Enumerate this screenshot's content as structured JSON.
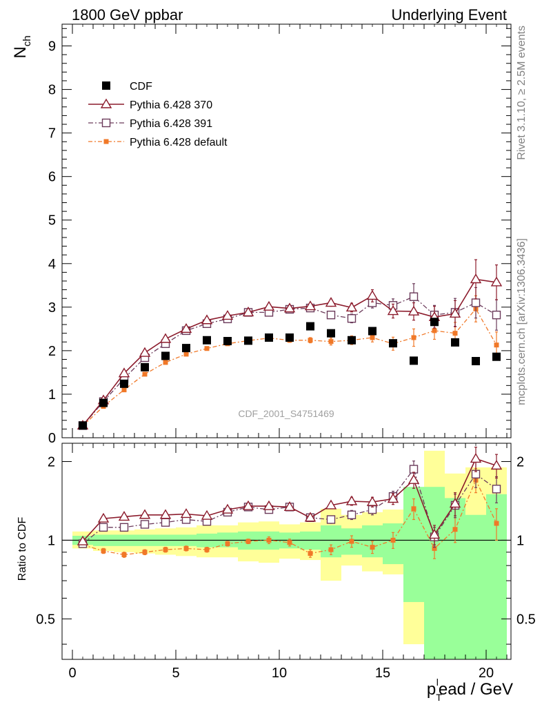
{
  "header": {
    "left": "1800 GeV ppbar",
    "right": "Underlying Event"
  },
  "side_labels": {
    "rivet": "Rivet 3.1.10, ≥ 2.5M events",
    "mcplots": "mcplots.cern.ch [arXiv:1306.3436]"
  },
  "watermark": "CDF_2001_S4751469",
  "colors": {
    "data": "#000000",
    "p370": "#8b1a2b",
    "p391": "#6b3a5a",
    "pdef": "#f07828",
    "band_inner": "#99ff99",
    "band_outer": "#ffff99"
  },
  "chart_data": [
    {
      "type": "scatter",
      "ylabel": "N",
      "ylabel_sub": "ch",
      "ylim": [
        0,
        9.5
      ],
      "xlim": [
        -0.5,
        21.2
      ],
      "yticks": [
        "0",
        "1",
        "2",
        "3",
        "4",
        "5",
        "6",
        "7",
        "8",
        "9"
      ],
      "legend_position": "top-left",
      "x": [
        0.5,
        1.5,
        2.5,
        3.5,
        4.5,
        5.5,
        6.5,
        7.5,
        8.5,
        9.5,
        10.5,
        11.5,
        12.5,
        13.5,
        14.5,
        15.5,
        16.5,
        17.5,
        18.5,
        19.5,
        20.5
      ],
      "series": [
        {
          "name": "CDF",
          "key": "data",
          "values": [
            0.28,
            0.8,
            1.24,
            1.62,
            1.88,
            2.06,
            2.24,
            2.22,
            2.23,
            2.3,
            2.3,
            2.56,
            2.4,
            2.24,
            2.45,
            2.17,
            1.77,
            2.66,
            2.19,
            1.76,
            1.86
          ]
        },
        {
          "name": "Pythia 6.428 370",
          "key": "p370",
          "values": [
            0.28,
            0.86,
            1.48,
            1.95,
            2.27,
            2.5,
            2.7,
            2.8,
            2.88,
            3.01,
            2.97,
            3.02,
            3.1,
            2.99,
            3.26,
            2.91,
            2.9,
            2.77,
            2.85,
            3.64,
            3.57
          ],
          "errors": [
            0.02,
            0.03,
            0.03,
            0.03,
            0.03,
            0.03,
            0.03,
            0.04,
            0.04,
            0.05,
            0.05,
            0.06,
            0.08,
            0.1,
            0.14,
            0.16,
            0.2,
            0.25,
            0.3,
            0.45,
            0.4
          ]
        },
        {
          "name": "Pythia 6.428 391",
          "key": "p391",
          "values": [
            0.28,
            0.83,
            1.36,
            1.84,
            2.16,
            2.46,
            2.62,
            2.73,
            2.88,
            2.88,
            2.95,
            2.98,
            2.82,
            2.74,
            3.1,
            3.04,
            3.24,
            2.82,
            2.88,
            3.1,
            2.82
          ],
          "errors": [
            0.02,
            0.03,
            0.03,
            0.03,
            0.03,
            0.03,
            0.03,
            0.04,
            0.04,
            0.05,
            0.05,
            0.06,
            0.08,
            0.1,
            0.12,
            0.15,
            0.3,
            0.22,
            0.32,
            0.35,
            0.35
          ]
        },
        {
          "name": "Pythia 6.428 default",
          "key": "pdef",
          "values": [
            0.27,
            0.72,
            1.1,
            1.46,
            1.73,
            1.92,
            2.05,
            2.16,
            2.23,
            2.29,
            2.24,
            2.24,
            2.21,
            2.24,
            2.3,
            2.16,
            2.3,
            2.46,
            2.4,
            2.96,
            2.13
          ],
          "errors": [
            0.02,
            0.03,
            0.03,
            0.03,
            0.03,
            0.03,
            0.03,
            0.04,
            0.04,
            0.05,
            0.05,
            0.06,
            0.08,
            0.1,
            0.1,
            0.15,
            0.2,
            0.2,
            0.25,
            0.3,
            0.3
          ]
        }
      ]
    },
    {
      "type": "scatter",
      "ylabel": "Ratio to CDF",
      "ylim": [
        0.35,
        2.35
      ],
      "log_y": true,
      "xlim": [
        -0.5,
        21.2
      ],
      "xlabel": "p",
      "xlabel_sub": "T",
      "xlabel_sup": "l",
      "xlabel_rest": "ead / GeV",
      "xticks": [
        "0",
        "5",
        "10",
        "15",
        "20"
      ],
      "yticks": [
        "0.5",
        "1",
        "2"
      ],
      "reference_line": 1,
      "bands": {
        "x": [
          0.5,
          1.5,
          2.5,
          3.5,
          4.5,
          5.5,
          6.5,
          7.5,
          8.5,
          9.5,
          10.5,
          11.5,
          12.5,
          13.5,
          14.5,
          15.5,
          16.5,
          17.5,
          18.5,
          19.5,
          20.5
        ],
        "inner": [
          [
            0.96,
            1.04
          ],
          [
            0.95,
            1.05
          ],
          [
            0.95,
            1.05
          ],
          [
            0.95,
            1.05
          ],
          [
            0.95,
            1.05
          ],
          [
            0.95,
            1.05
          ],
          [
            0.94,
            1.06
          ],
          [
            0.94,
            1.07
          ],
          [
            0.92,
            1.08
          ],
          [
            0.92,
            1.08
          ],
          [
            0.93,
            1.07
          ],
          [
            0.92,
            1.08
          ],
          [
            0.86,
            1.14
          ],
          [
            0.88,
            1.11
          ],
          [
            0.86,
            1.14
          ],
          [
            0.81,
            1.16
          ],
          [
            0.58,
            1.6
          ],
          [
            0.3,
            1.6
          ],
          [
            0.35,
            1.45
          ],
          [
            0.3,
            1.25
          ],
          [
            0.3,
            1.5
          ]
        ],
        "outer": [
          [
            0.93,
            1.08
          ],
          [
            0.91,
            1.09
          ],
          [
            0.9,
            1.09
          ],
          [
            0.89,
            1.1
          ],
          [
            0.88,
            1.11
          ],
          [
            0.87,
            1.12
          ],
          [
            0.86,
            1.14
          ],
          [
            0.86,
            1.14
          ],
          [
            0.83,
            1.17
          ],
          [
            0.82,
            1.18
          ],
          [
            0.85,
            1.15
          ],
          [
            0.84,
            1.17
          ],
          [
            0.7,
            1.32
          ],
          [
            0.8,
            1.25
          ],
          [
            0.76,
            1.28
          ],
          [
            0.74,
            1.31
          ],
          [
            0.4,
            1.5
          ],
          [
            0.3,
            2.2
          ],
          [
            0.3,
            1.8
          ],
          [
            0.3,
            1.9
          ],
          [
            0.3,
            1.9
          ]
        ]
      },
      "series": [
        {
          "name": "Pythia 6.428 370",
          "key": "p370",
          "values": [
            0.99,
            1.21,
            1.23,
            1.25,
            1.25,
            1.26,
            1.24,
            1.31,
            1.35,
            1.35,
            1.34,
            1.22,
            1.36,
            1.41,
            1.4,
            1.44,
            1.7,
            1.05,
            1.38,
            2.05,
            1.93
          ],
          "errors": [
            0.02,
            0.02,
            0.02,
            0.02,
            0.02,
            0.02,
            0.02,
            0.02,
            0.02,
            0.03,
            0.03,
            0.03,
            0.04,
            0.05,
            0.06,
            0.07,
            0.12,
            0.09,
            0.14,
            0.22,
            0.2
          ]
        },
        {
          "name": "Pythia 6.428 391",
          "key": "p391",
          "values": [
            0.97,
            1.12,
            1.12,
            1.15,
            1.17,
            1.2,
            1.18,
            1.28,
            1.34,
            1.31,
            1.34,
            1.22,
            1.2,
            1.25,
            1.31,
            1.47,
            1.87,
            1.03,
            1.36,
            1.79,
            1.57
          ],
          "errors": [
            0.02,
            0.02,
            0.02,
            0.02,
            0.02,
            0.02,
            0.02,
            0.02,
            0.02,
            0.03,
            0.03,
            0.03,
            0.04,
            0.05,
            0.06,
            0.07,
            0.14,
            0.09,
            0.14,
            0.2,
            0.18
          ]
        },
        {
          "name": "Pythia 6.428 default",
          "key": "pdef",
          "values": [
            0.96,
            0.91,
            0.88,
            0.9,
            0.92,
            0.93,
            0.92,
            0.97,
            0.99,
            1.0,
            0.98,
            0.89,
            0.92,
            0.99,
            0.94,
            1.0,
            1.32,
            0.93,
            1.1,
            1.7,
            1.16
          ],
          "errors": [
            0.02,
            0.02,
            0.02,
            0.02,
            0.02,
            0.02,
            0.02,
            0.02,
            0.02,
            0.03,
            0.03,
            0.03,
            0.04,
            0.05,
            0.05,
            0.07,
            0.12,
            0.08,
            0.12,
            0.18,
            0.16
          ]
        }
      ]
    }
  ]
}
